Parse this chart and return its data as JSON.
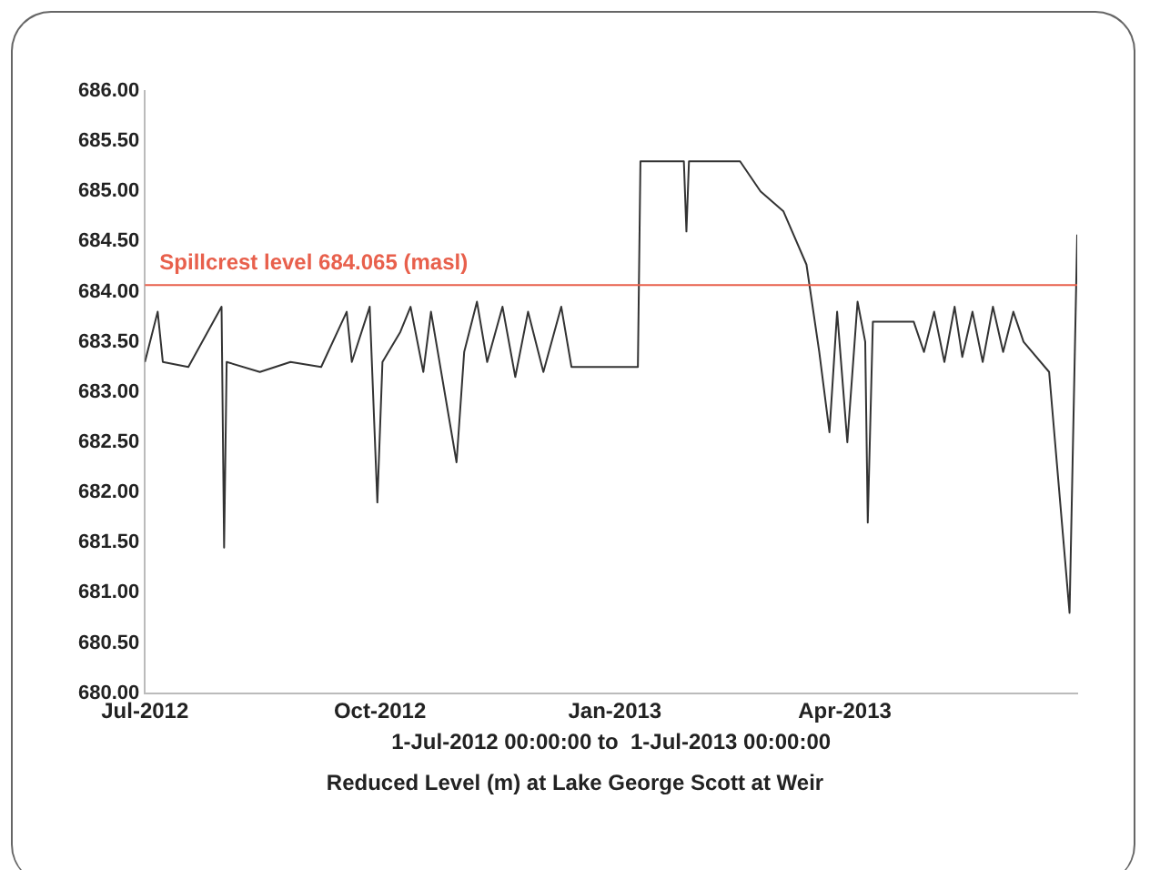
{
  "chart_data": {
    "type": "line",
    "title": "Reduced Level (m) at Lake George Scott at Weir",
    "xlabel": "1-Jul-2012 00:00:00 to  1-Jul-2013 00:00:00",
    "x": [
      "2012-07-01",
      "2012-07-06",
      "2012-07-08",
      "2012-07-18",
      "2012-07-31",
      "2012-08-01",
      "2012-08-02",
      "2012-08-15",
      "2012-08-27",
      "2012-09-08",
      "2012-09-18",
      "2012-09-20",
      "2012-09-27",
      "2012-09-30",
      "2012-10-02",
      "2012-10-09",
      "2012-10-13",
      "2012-10-18",
      "2012-10-21",
      "2012-10-31",
      "2012-11-03",
      "2012-11-08",
      "2012-11-12",
      "2012-11-18",
      "2012-11-23",
      "2012-11-28",
      "2012-12-04",
      "2012-12-11",
      "2012-12-15",
      "2013-01-10",
      "2013-01-11",
      "2013-01-28",
      "2013-01-29",
      "2013-01-30",
      "2013-02-19",
      "2013-02-27",
      "2013-03-08",
      "2013-03-17",
      "2013-03-22",
      "2013-03-26",
      "2013-03-29",
      "2013-04-02",
      "2013-04-06",
      "2013-04-09",
      "2013-04-10",
      "2013-04-12",
      "2013-04-28",
      "2013-05-02",
      "2013-05-06",
      "2013-05-10",
      "2013-05-14",
      "2013-05-17",
      "2013-05-21",
      "2013-05-25",
      "2013-05-29",
      "2013-06-02",
      "2013-06-06",
      "2013-06-10",
      "2013-06-20",
      "2013-06-28",
      "2013-07-01"
    ],
    "series": [
      {
        "color": "#333333",
        "values": [
          683.3,
          683.8,
          683.3,
          683.25,
          683.85,
          681.45,
          683.3,
          683.2,
          683.3,
          683.25,
          683.8,
          683.3,
          683.85,
          681.9,
          683.3,
          683.6,
          683.85,
          683.2,
          683.8,
          682.3,
          683.4,
          683.9,
          683.3,
          683.85,
          683.15,
          683.8,
          683.2,
          683.85,
          683.25,
          683.25,
          685.3,
          685.3,
          684.6,
          685.3,
          685.3,
          685.0,
          684.8,
          684.27,
          683.4,
          682.6,
          683.8,
          682.5,
          683.9,
          683.5,
          681.7,
          683.7,
          683.7,
          683.4,
          683.8,
          683.3,
          683.85,
          683.35,
          683.8,
          683.3,
          683.85,
          683.4,
          683.8,
          683.5,
          683.2,
          680.8,
          684.57
        ]
      }
    ],
    "xlim": [
      "2012-07-01",
      "2013-07-01"
    ],
    "xticks": [
      {
        "value": "2012-07-01",
        "label": "Jul-2012"
      },
      {
        "value": "2012-10-01",
        "label": "Oct-2012"
      },
      {
        "value": "2013-01-01",
        "label": "Jan-2013"
      },
      {
        "value": "2013-04-01",
        "label": "Apr-2013"
      }
    ],
    "ylim": [
      680,
      686
    ],
    "yticks": [
      {
        "value": 680,
        "label": "680.00"
      },
      {
        "value": 680.5,
        "label": "680.50"
      },
      {
        "value": 681,
        "label": "681.00"
      },
      {
        "value": 681.5,
        "label": "681.50"
      },
      {
        "value": 682,
        "label": "682.00"
      },
      {
        "value": 682.5,
        "label": "682.50"
      },
      {
        "value": 683,
        "label": "683.00"
      },
      {
        "value": 683.5,
        "label": "683.50"
      },
      {
        "value": 684,
        "label": "684.00"
      },
      {
        "value": 684.5,
        "label": "684.50"
      },
      {
        "value": 685,
        "label": "685.00"
      },
      {
        "value": 685.5,
        "label": "685.50"
      },
      {
        "value": 686,
        "label": "686.00"
      }
    ],
    "ref_lines": [
      {
        "axis": "y",
        "value": 684.065,
        "label": "Spillcrest level 684.065 (masl)",
        "color": "#e8604c"
      }
    ],
    "grid": false,
    "legend": false,
    "marker": "none",
    "line_style": "solid"
  }
}
